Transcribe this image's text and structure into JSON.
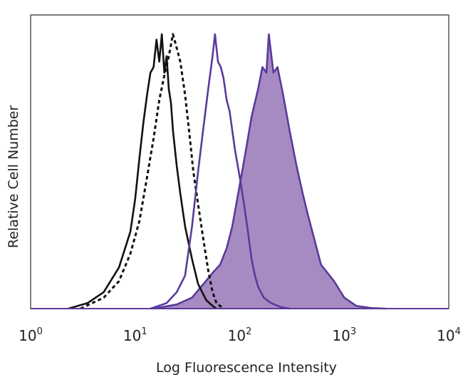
{
  "chart_data": {
    "type": "line",
    "title": "",
    "xlabel": "Log Fluorescence Intensity",
    "ylabel": "Relative Cell Number",
    "x_scale": "log",
    "xlim": [
      1,
      10000
    ],
    "ylim": [
      0,
      1
    ],
    "grid": false,
    "legend": "none",
    "x_ticks": [
      {
        "base": "10",
        "exp": "0"
      },
      {
        "base": "10",
        "exp": "1"
      },
      {
        "base": "10",
        "exp": "2"
      },
      {
        "base": "10",
        "exp": "3"
      },
      {
        "base": "10",
        "exp": "4"
      }
    ],
    "series": [
      {
        "style": "solid",
        "color": "#111111",
        "fill": "none",
        "x": [
          2.3,
          3.5,
          5,
          7,
          9,
          10,
          11,
          12,
          13,
          14,
          15,
          16,
          17,
          18,
          19,
          20,
          21,
          22,
          23,
          25,
          27,
          30,
          35,
          40,
          48,
          55,
          60
        ],
        "y": [
          0,
          0.02,
          0.06,
          0.15,
          0.28,
          0.4,
          0.55,
          0.68,
          0.78,
          0.86,
          0.88,
          0.98,
          0.9,
          1.0,
          0.86,
          0.92,
          0.8,
          0.75,
          0.65,
          0.52,
          0.42,
          0.3,
          0.18,
          0.09,
          0.03,
          0.01,
          0
        ]
      },
      {
        "style": "dashed",
        "color": "#111111",
        "fill": "none",
        "x": [
          3,
          5,
          7,
          9,
          11,
          13,
          15,
          17,
          19,
          21,
          23,
          25,
          27,
          30,
          33,
          36,
          40,
          45,
          50,
          55,
          60,
          70
        ],
        "y": [
          0,
          0.04,
          0.1,
          0.2,
          0.32,
          0.48,
          0.62,
          0.76,
          0.85,
          0.92,
          1.0,
          0.95,
          0.9,
          0.78,
          0.64,
          0.5,
          0.38,
          0.25,
          0.14,
          0.06,
          0.02,
          0
        ]
      },
      {
        "style": "solid",
        "color": "#5a3a9a",
        "fill": "none",
        "x": [
          14,
          20,
          25,
          30,
          35,
          40,
          45,
          50,
          55,
          58,
          62,
          66,
          70,
          75,
          80,
          90,
          100,
          110,
          120,
          130,
          140,
          150,
          170,
          200,
          250,
          300
        ],
        "y": [
          0,
          0.02,
          0.06,
          0.12,
          0.3,
          0.5,
          0.66,
          0.8,
          0.92,
          1.0,
          0.9,
          0.88,
          0.84,
          0.76,
          0.72,
          0.58,
          0.48,
          0.38,
          0.28,
          0.18,
          0.12,
          0.08,
          0.04,
          0.02,
          0.005,
          0
        ]
      },
      {
        "style": "solid",
        "color": "#5a3a9a",
        "fill": "#a68ac2",
        "x": [
          15,
          25,
          35,
          45,
          55,
          65,
          75,
          85,
          100,
          115,
          130,
          150,
          165,
          180,
          190,
          210,
          230,
          260,
          300,
          350,
          400,
          450,
          520,
          600,
          800,
          1000,
          1300,
          1800,
          2500
        ],
        "y": [
          0,
          0.015,
          0.04,
          0.09,
          0.13,
          0.16,
          0.22,
          0.3,
          0.45,
          0.58,
          0.7,
          0.8,
          0.88,
          0.86,
          1.0,
          0.86,
          0.88,
          0.78,
          0.65,
          0.52,
          0.42,
          0.34,
          0.25,
          0.16,
          0.1,
          0.04,
          0.01,
          0.002,
          0
        ]
      }
    ]
  }
}
